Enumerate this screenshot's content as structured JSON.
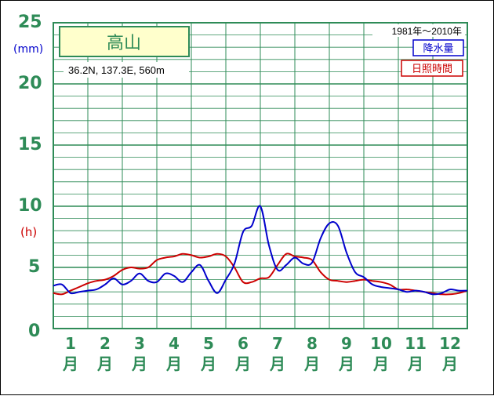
{
  "station": {
    "name": "高山",
    "coords": "36.2N,  137.3E,  560m",
    "period": "1981年〜2010年"
  },
  "colors": {
    "grid": "#2e8b57",
    "precip": "#0000cc",
    "sun": "#cc0000",
    "title_bg": "#ffffcc"
  },
  "chart_data": {
    "type": "line",
    "x": [
      0.5,
      0.75,
      1,
      1.25,
      1.5,
      1.75,
      2,
      2.25,
      2.5,
      2.75,
      3,
      3.25,
      3.5,
      3.75,
      4,
      4.25,
      4.5,
      4.75,
      5,
      5.25,
      5.5,
      5.75,
      6,
      6.25,
      6.5,
      6.75,
      7,
      7.25,
      7.5,
      7.75,
      8,
      8.25,
      8.5,
      8.75,
      9,
      9.25,
      9.5,
      9.75,
      10,
      10.25,
      10.5,
      10.75,
      11,
      11.25,
      11.5,
      11.75,
      12,
      12.25,
      12.5
    ],
    "series": [
      {
        "name": "降水量",
        "color": "#0000cc",
        "values": [
          3.5,
          3.6,
          2.9,
          3.0,
          3.1,
          3.2,
          3.6,
          4.1,
          3.6,
          3.9,
          4.5,
          3.9,
          3.8,
          4.5,
          4.3,
          3.8,
          4.6,
          5.2,
          3.9,
          2.9,
          4.0,
          5.3,
          7.9,
          8.4,
          10.0,
          6.8,
          4.8,
          5.2,
          5.8,
          5.3,
          5.4,
          7.4,
          8.6,
          8.4,
          6.2,
          4.6,
          4.2,
          3.6,
          3.4,
          3.3,
          3.2,
          3.0,
          3.1,
          3.0,
          2.8,
          2.9,
          3.2,
          3.1,
          3.1
        ]
      },
      {
        "name": "日照時間",
        "color": "#cc0000",
        "values": [
          2.9,
          2.8,
          3.1,
          3.4,
          3.7,
          3.9,
          4.0,
          4.3,
          4.8,
          5.0,
          4.9,
          5.0,
          5.6,
          5.8,
          5.9,
          6.1,
          6.0,
          5.8,
          5.9,
          6.1,
          5.9,
          5.0,
          3.8,
          3.8,
          4.1,
          4.2,
          5.2,
          6.1,
          5.9,
          5.8,
          5.6,
          4.6,
          4.0,
          3.9,
          3.8,
          3.9,
          4.0,
          3.9,
          3.8,
          3.6,
          3.2,
          3.2,
          3.1,
          3.0,
          2.9,
          2.8,
          2.8,
          2.9,
          3.1
        ]
      }
    ],
    "yticks": [
      "0",
      "5",
      "10",
      "15",
      "20",
      "25"
    ],
    "ylim": [
      0,
      25
    ],
    "xlim": [
      0.5,
      12.5
    ],
    "months": [
      "1",
      "2",
      "3",
      "4",
      "5",
      "6",
      "7",
      "8",
      "9",
      "10",
      "11",
      "12"
    ],
    "month_suffix": "月",
    "unit_precip": "(mm)",
    "unit_sun": "(h)",
    "legend": [
      "降水量",
      "日照時間"
    ],
    "legend_position": "top-right",
    "grid": true
  }
}
